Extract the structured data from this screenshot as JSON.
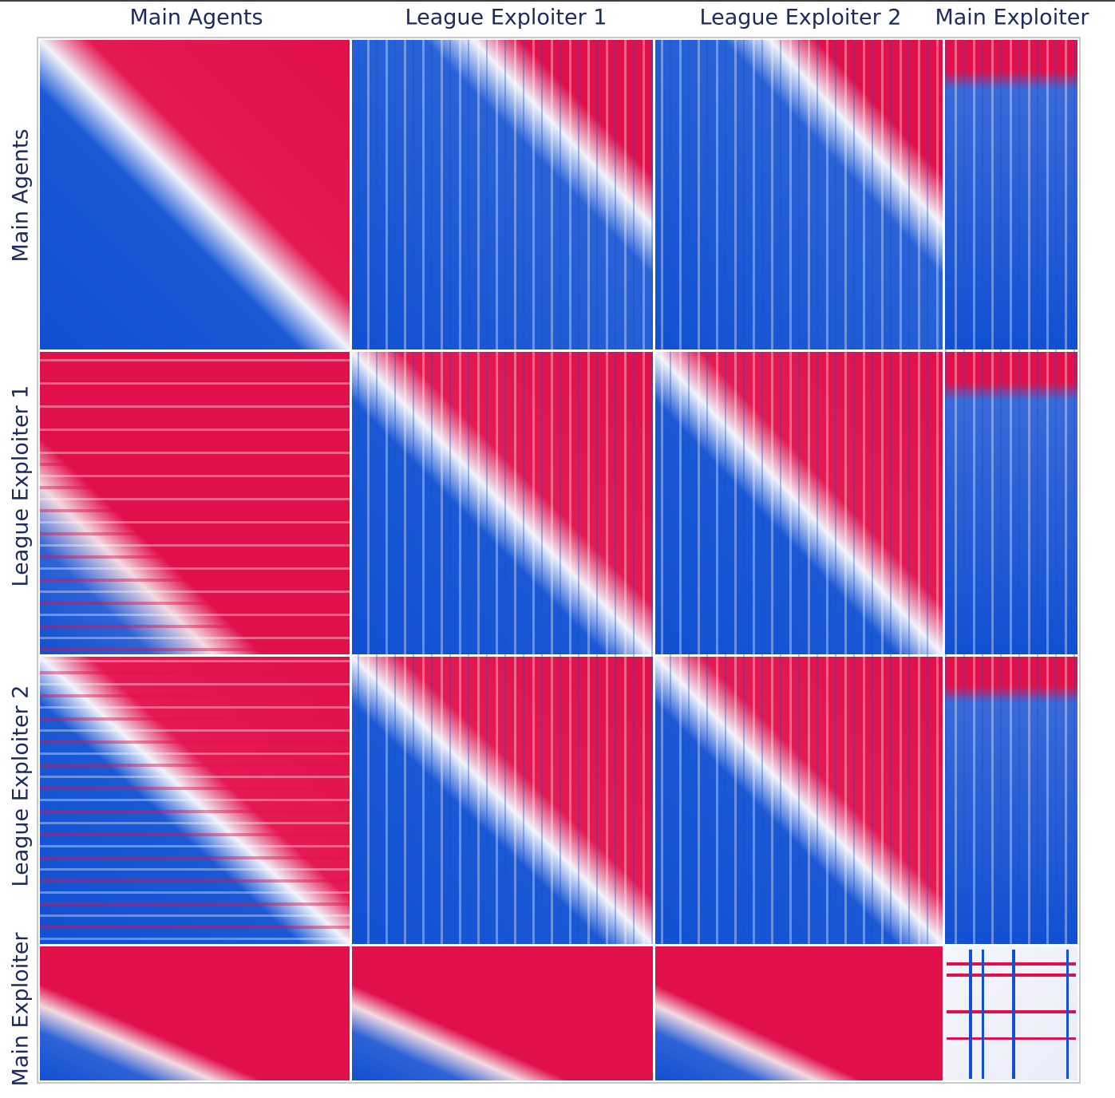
{
  "columns": [
    "Main Agents",
    "League Exploiter 1",
    "League Exploiter 2",
    "Main Exploiter"
  ],
  "rows": [
    "Main Agents",
    "League Exploiter 1",
    "League Exploiter 2",
    "Main Exploiter"
  ]
}
